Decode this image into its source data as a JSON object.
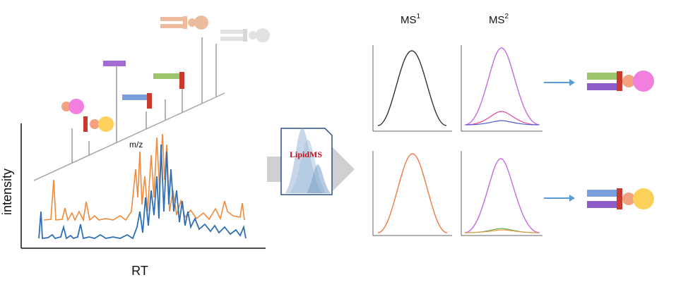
{
  "labels": {
    "intensity": "intensity",
    "rt": "RT",
    "mz": "m/z",
    "ms1_base": "MS",
    "ms1_sup": "1",
    "ms2_base": "MS",
    "ms2_sup": "2"
  },
  "app": {
    "name": "LipidMS"
  },
  "colors": {
    "chrom_blue": "#2e6fb5",
    "chrom_orange": "#f08a3c",
    "ms1_top": "#333333",
    "ms1_bottom": "#f07a45",
    "ms2_main": "#c46be6",
    "ms2_minor_pink": "#e83e9a",
    "ms2_minor_blue": "#4a5bd6",
    "ms2_minor_green": "#6aa84f",
    "ms2_minor_orange": "#e39a3a",
    "arrow": "#5b9bd5",
    "gray_arrow": "#d0d0d0"
  },
  "icons": [
    "lipid-species-icon",
    "lipid-fragment-icon",
    "document-icon",
    "arrow-icon"
  ]
}
